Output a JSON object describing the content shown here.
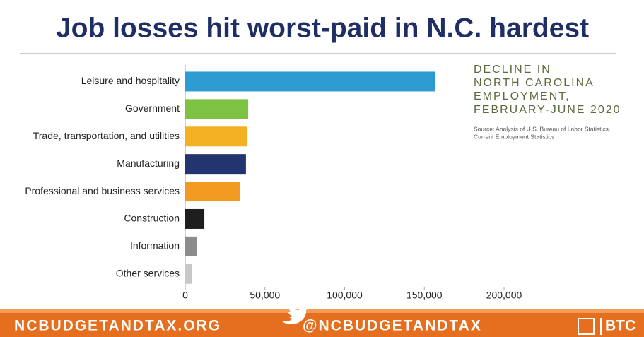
{
  "chart_data": {
    "type": "hbar",
    "title": "Job losses hit worst-paid in N.C. hardest",
    "annotation": [
      "DECLINE IN",
      "NORTH CAROLINA",
      "EMPLOYMENT,",
      "FEBRUARY-JUNE 2020"
    ],
    "source": [
      "Source: Analysis of U.S. Bureau of Labor Statistics,",
      "Current Employment Statistics"
    ],
    "categories": [
      "Leisure and hospitality",
      "Government",
      "Trade, transportation, and utilities",
      "Manufacturing",
      "Professional and business services",
      "Construction",
      "Information",
      "Other services"
    ],
    "values": [
      157000,
      39500,
      38600,
      38100,
      34600,
      12000,
      7500,
      4400
    ],
    "colors": [
      "#2f9bd3",
      "#7dc243",
      "#f4b223",
      "#23356f",
      "#f39a21",
      "#1e1e1e",
      "#8c8c8c",
      "#c8c8c8"
    ],
    "xlim": [
      0,
      200000
    ],
    "xticks": [
      0,
      {
        "value": 50000,
        "label": "50,000"
      },
      {
        "value": 100000,
        "label": "100,000"
      },
      {
        "value": 150000,
        "label": "150,000"
      },
      {
        "value": 200000,
        "label": "200,000"
      }
    ]
  },
  "footer": {
    "site": "NCBUDGETANDTAX.ORG",
    "handle": "@NCBUDGETANDTAX",
    "brand": "BTC"
  }
}
